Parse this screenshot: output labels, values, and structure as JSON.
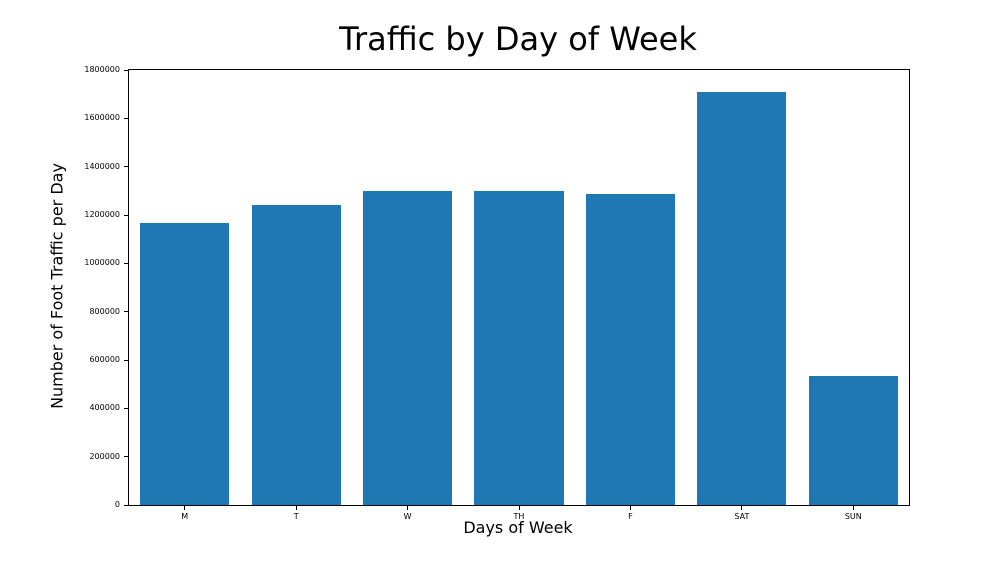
{
  "chart_data": {
    "type": "bar",
    "title": "Traffic by Day of Week",
    "xlabel": "Days of Week",
    "ylabel": "Number of Foot Traffic per Day",
    "categories": [
      "M",
      "T",
      "W",
      "TH",
      "F",
      "SAT",
      "SUN"
    ],
    "values": [
      1165000,
      1240000,
      1300000,
      1300000,
      1285000,
      1710000,
      535000
    ],
    "ylim": [
      0,
      1800000
    ],
    "yticks": [
      0,
      200000,
      400000,
      600000,
      800000,
      1000000,
      1200000,
      1400000,
      1600000,
      1800000
    ],
    "bar_color": "#1f77b4",
    "bar_width_fraction": 0.8,
    "grid": false,
    "legend": "none"
  }
}
